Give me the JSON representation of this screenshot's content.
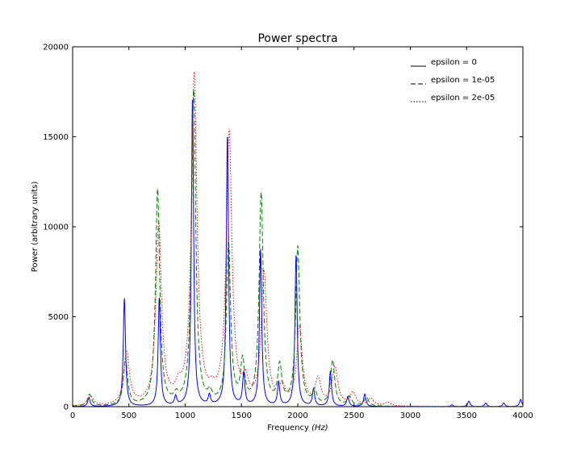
{
  "chart_data": {
    "type": "line",
    "title": "Power spectra",
    "xlabel": "Frequency",
    "xlabel_unit": "(Hz)",
    "ylabel": "Power (arbitrary units)",
    "xlim": [
      0,
      4000
    ],
    "ylim": [
      0,
      20000
    ],
    "xticks": [
      0,
      500,
      1000,
      1500,
      2000,
      2500,
      3000,
      3500,
      4000
    ],
    "yticks": [
      0,
      5000,
      10000,
      15000,
      20000
    ],
    "legend_position": "top-right",
    "grid": false,
    "series": [
      {
        "name": "epsilon = 0",
        "color": "#0000ff",
        "style": "solid",
        "peaks": [
          [
            145,
            500
          ],
          [
            460,
            6000
          ],
          [
            770,
            6000
          ],
          [
            915,
            500
          ],
          [
            1065,
            17100
          ],
          [
            1215,
            550
          ],
          [
            1375,
            15000
          ],
          [
            1520,
            1800
          ],
          [
            1670,
            8700
          ],
          [
            1830,
            1300
          ],
          [
            1985,
            8400
          ],
          [
            2140,
            950
          ],
          [
            2290,
            1950
          ],
          [
            2445,
            550
          ],
          [
            2595,
            700
          ],
          [
            3370,
            100
          ],
          [
            3520,
            300
          ],
          [
            3670,
            200
          ],
          [
            3830,
            200
          ],
          [
            3980,
            400
          ]
        ]
      },
      {
        "name": "epsilon = 1e-05",
        "color": "#008000",
        "style": "dashed",
        "peaks": [
          [
            150,
            650
          ],
          [
            470,
            2600
          ],
          [
            755,
            12000
          ],
          [
            920,
            400
          ],
          [
            1075,
            17500
          ],
          [
            1220,
            500
          ],
          [
            1385,
            9000
          ],
          [
            1510,
            2300
          ],
          [
            1675,
            11700
          ],
          [
            1840,
            2100
          ],
          [
            2000,
            8800
          ],
          [
            2150,
            750
          ],
          [
            2310,
            2500
          ],
          [
            2460,
            500
          ],
          [
            2610,
            500
          ]
        ]
      },
      {
        "name": "epsilon = 2e-05",
        "color": "#ff0000",
        "style": "dotted",
        "peaks": [
          [
            160,
            500
          ],
          [
            480,
            2900
          ],
          [
            765,
            10000
          ],
          [
            940,
            700
          ],
          [
            1080,
            18300
          ],
          [
            1240,
            400
          ],
          [
            1390,
            15100
          ],
          [
            1535,
            1100
          ],
          [
            1700,
            7300
          ],
          [
            1860,
            900
          ],
          [
            2015,
            4300
          ],
          [
            2180,
            1400
          ],
          [
            2330,
            2100
          ],
          [
            2490,
            700
          ],
          [
            2650,
            400
          ],
          [
            2800,
            200
          ]
        ]
      }
    ]
  }
}
